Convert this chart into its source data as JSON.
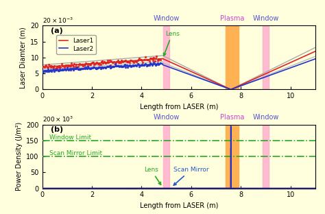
{
  "background_color": "#ffffdd",
  "xlim": [
    0,
    11
  ],
  "xticks": [
    0,
    2,
    4,
    6,
    8,
    10
  ],
  "panel_a": {
    "label": "(a)",
    "ylabel": "Laser Diamter (m)",
    "ylim": [
      0,
      0.02
    ],
    "yticks": [
      0,
      0.005,
      0.01,
      0.015,
      0.02
    ],
    "ytick_labels": [
      "0",
      "5",
      "10",
      "15",
      "20"
    ],
    "lens_x": 4.85,
    "focus_x": 7.6,
    "laser1_color": "#dd2222",
    "laser2_color": "#2233cc",
    "noise_seed": 42,
    "lens_label": "Lens",
    "lens_arrow_color": "#22aa22"
  },
  "panel_b": {
    "label": "(b)",
    "ylabel": "Power Density (J/m²)",
    "ylim": [
      0,
      200000
    ],
    "yticks": [
      0,
      50000,
      100000,
      150000,
      200000
    ],
    "ytick_labels": [
      "0",
      "50",
      "100",
      "150",
      "200"
    ],
    "window_limit": 150000,
    "scan_mirror_limit": 100000,
    "window_limit_label": "Window Limit",
    "scan_mirror_limit_label": "Scan Mirror Limit",
    "lens_x": 4.85,
    "scan_mirror_x": 5.2,
    "focus_x": 7.6,
    "laser1_color": "#dd2222",
    "laser2_color": "#2233cc",
    "lens_label": "Lens",
    "scan_mirror_label": "Scan Mirror",
    "lens_arrow_color": "#22aa22",
    "scan_mirror_arrow_color": "#2255cc",
    "limit_color": "#22aa22"
  },
  "window1_x": 5.0,
  "window2_x": 9.0,
  "plasma_x_start": 7.4,
  "plasma_x_end": 7.9,
  "window_color": "#ffaacc",
  "plasma_color": "#ffaa44",
  "window_label_color": "#5555cc",
  "plasma_label_color": "#cc44cc",
  "window_label": "Window",
  "plasma_label": "Plasma",
  "xlabel": "Length from LASER (m)"
}
